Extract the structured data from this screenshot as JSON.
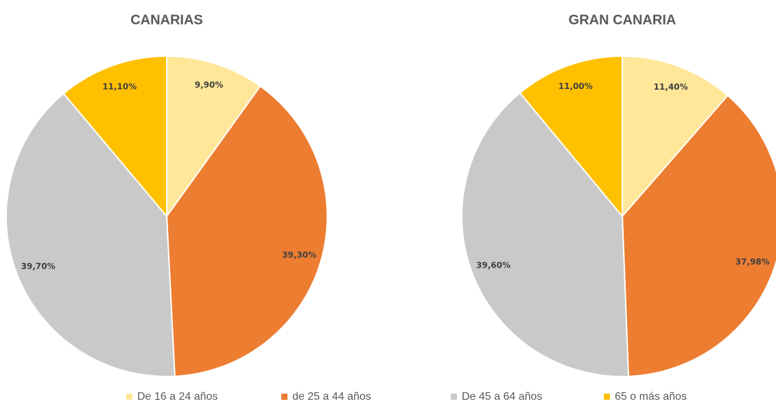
{
  "legend": {
    "labels": [
      "De 16 a 24 años",
      "de 25 a 44 años",
      "De 45 a 64 años",
      "65 o más años"
    ],
    "colors": [
      "#ffe699",
      "#ed7d31",
      "#c9c9c9",
      "#ffc000"
    ]
  },
  "chart_data": [
    {
      "type": "pie",
      "title": "CANARIAS",
      "values": [
        9.9,
        39.3,
        39.7,
        11.1
      ],
      "value_labels": [
        "9,90%",
        "39,30%",
        "39,70%",
        "11,10%"
      ]
    },
    {
      "type": "pie",
      "title": "GRAN CANARIA",
      "values": [
        11.4,
        37.98,
        39.6,
        11.0
      ],
      "value_labels": [
        "11,40%",
        "37,98%",
        "39,60%",
        "11,00%"
      ]
    }
  ]
}
